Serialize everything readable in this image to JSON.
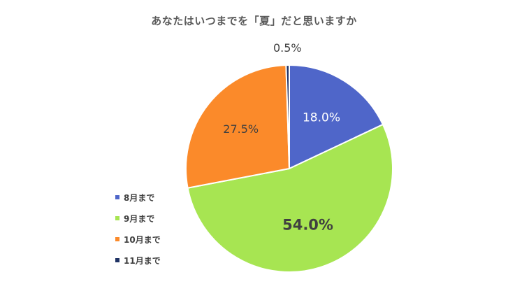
{
  "chart_data": {
    "type": "pie",
    "title": "あなたはいつまでを「夏」だと思いますか",
    "categories": [
      "8月まで",
      "9月まで",
      "10月まで",
      "11月まで"
    ],
    "values": [
      18.0,
      54.0,
      27.5,
      0.5
    ],
    "labels": [
      "18.0%",
      "54.0%",
      "27.5%",
      "0.5%"
    ],
    "colors": [
      "#4f66c9",
      "#a7e552",
      "#fb8a2a",
      "#1f3264"
    ],
    "label_colors": [
      "#ffffff",
      "#404040",
      "#404040",
      "#404040"
    ],
    "legend_position": "left",
    "start_angle_deg": 0,
    "direction": "clockwise"
  }
}
